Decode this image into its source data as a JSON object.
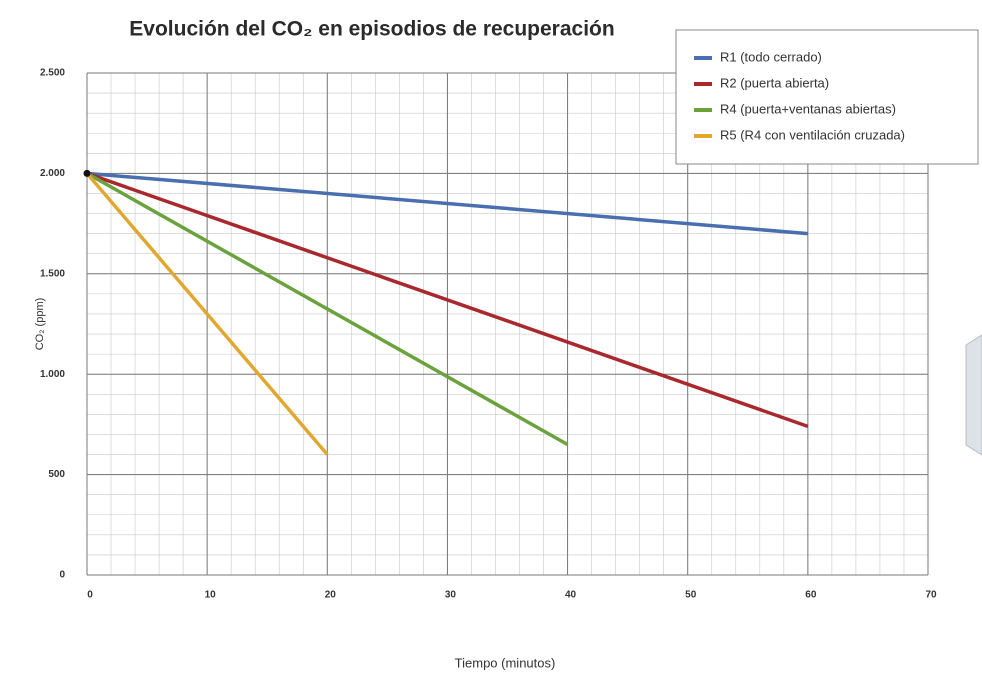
{
  "chart_data": {
    "type": "line",
    "title": "Evolución del CO₂ en episodios de recuperación",
    "x_label": "Tiempo (minutos)",
    "y_label": "CO₂ (ppm)",
    "xlim": [
      0,
      70
    ],
    "xticks": [
      0,
      10,
      20,
      30,
      40,
      50,
      60,
      70
    ],
    "ylim": [
      0,
      2500
    ],
    "yticks": [
      0,
      500,
      {
        "value": 1000,
        "label": "1.000"
      },
      {
        "value": 1500,
        "label": "1.500"
      },
      {
        "value": 2000,
        "label": "2.000"
      },
      {
        "value": 2500,
        "label": "2.500"
      }
    ],
    "grid": true,
    "minor_grid": true,
    "legend": "upper right",
    "series": [
      {
        "name": "R1 (todo cerrado)",
        "color": "#4a6fb0",
        "x": [
          0,
          60
        ],
        "values": [
          2000,
          1700
        ]
      },
      {
        "name": "R2 (puerta abierta)",
        "color": "#a8282e",
        "x": [
          0,
          60
        ],
        "values": [
          2000,
          740
        ]
      },
      {
        "name": "R4 (puerta+ventanas abiertas)",
        "color": "#6aa23d",
        "x": [
          0,
          40
        ],
        "values": [
          2000,
          650
        ]
      },
      {
        "name": "R5 (R4 con ventilación cruzada)",
        "color": "#e0a830",
        "x": [
          0,
          20
        ],
        "values": [
          2000,
          600
        ]
      }
    ]
  }
}
